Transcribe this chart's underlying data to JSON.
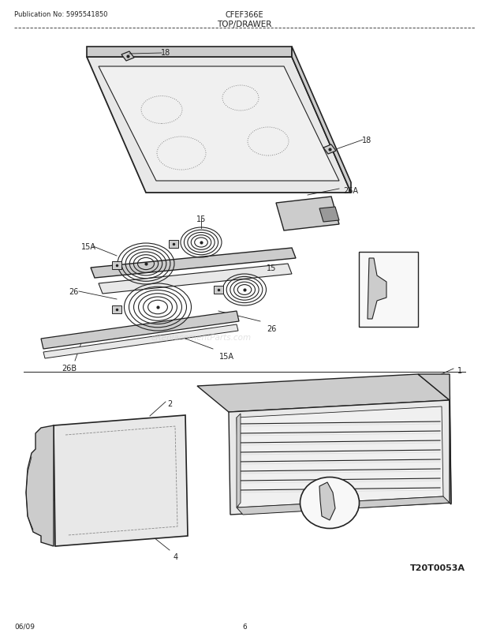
{
  "bg_color": "#ffffff",
  "pub_no": "Publication No: 5995541850",
  "model": "CFEF366E",
  "section": "TOP/DRAWER",
  "diagram_code": "T20T0053A",
  "date": "06/09",
  "page": "6",
  "watermark": "eReplacementParts.com",
  "fig_width": 6.2,
  "fig_height": 8.03,
  "dpi": 100,
  "line_color": "#222222",
  "fill_light": "#e8e8e8",
  "fill_mid": "#cccccc",
  "fill_dark": "#999999"
}
